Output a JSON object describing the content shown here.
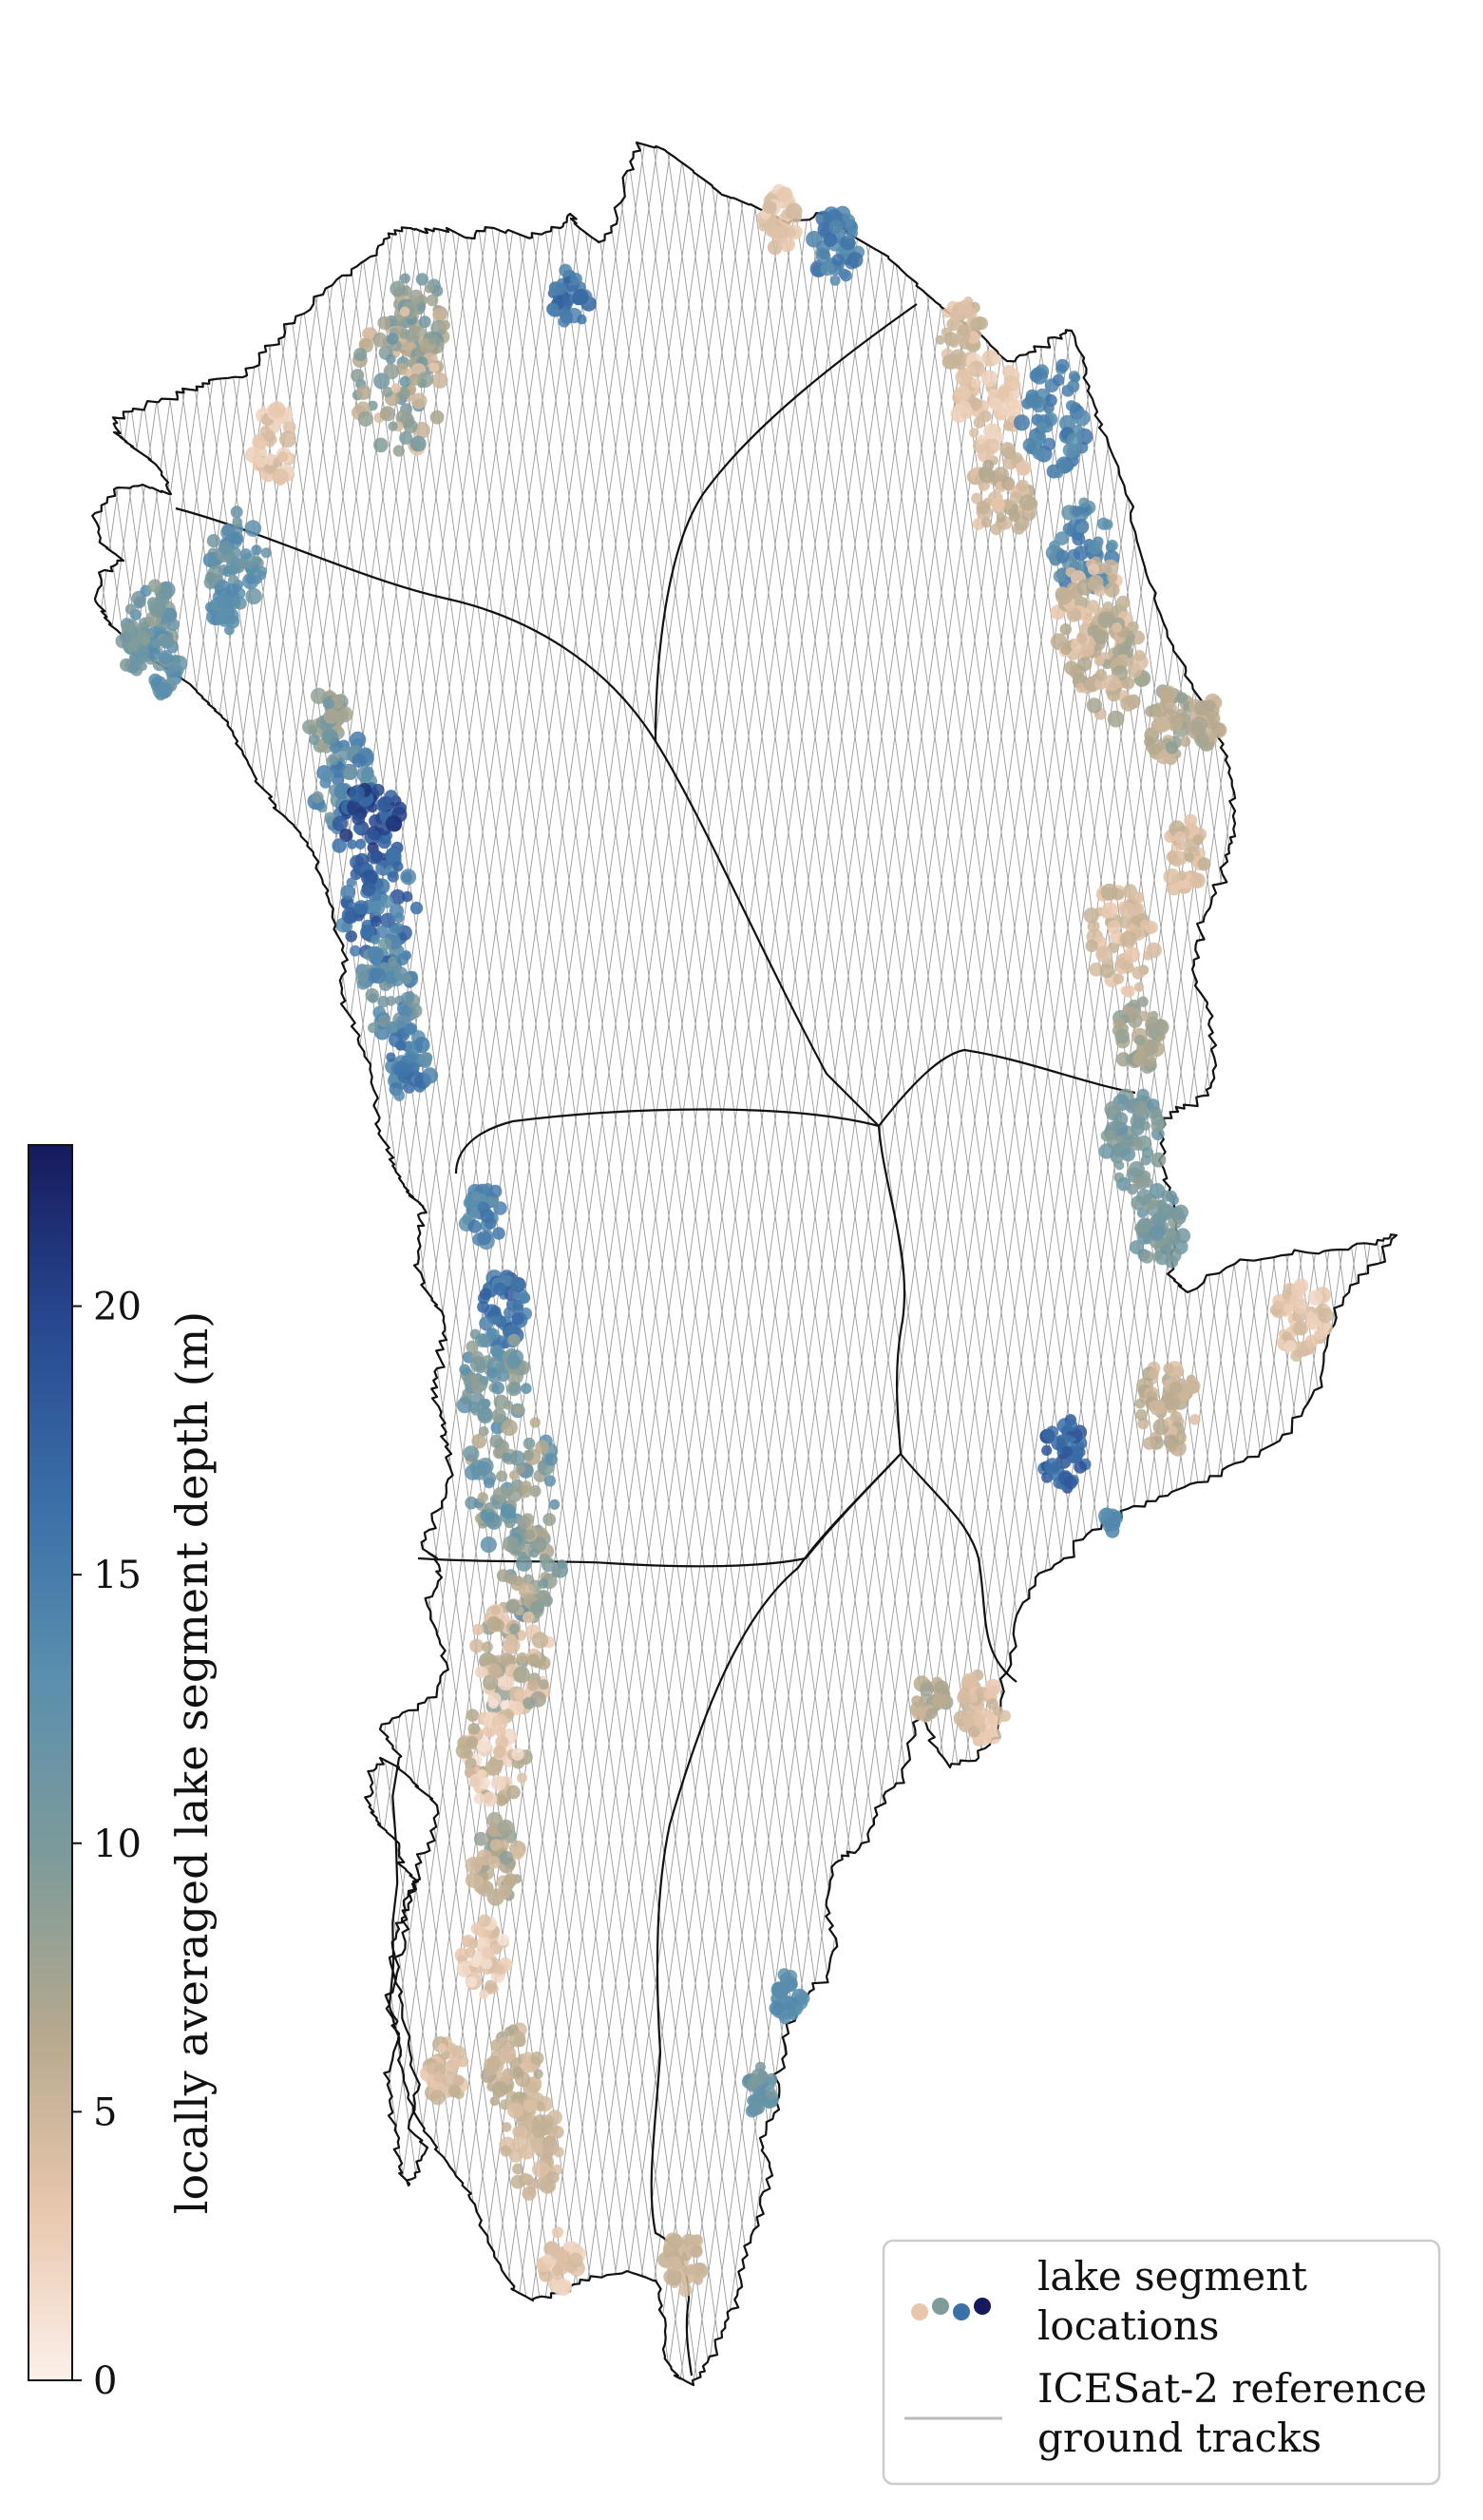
{
  "colorbar": {
    "label": "locally averaged lake segment depth (m)",
    "min": 0,
    "max": 23,
    "ticks": [
      0,
      5,
      10,
      15,
      20
    ],
    "tick_labels": [
      "0",
      "5",
      "10",
      "15",
      "20"
    ],
    "colors": [
      "#fcf0ea",
      "#e8c7ad",
      "#b6a98e",
      "#7f9b9a",
      "#5a8fae",
      "#3b6fa8",
      "#27478f",
      "#161a5c"
    ]
  },
  "legend": {
    "items": [
      {
        "label_line1": "lake segment",
        "label_line2": "locations",
        "marker": "colored-dots",
        "dot_colors": [
          "#e8c7ad",
          "#7f9b9a",
          "#3b6fa8",
          "#161a5c"
        ]
      },
      {
        "label_line1": "ICESat-2 reference",
        "label_line2": "ground tracks",
        "marker": "gray-line",
        "line_color": "#bbbbbb"
      }
    ]
  },
  "map": {
    "land_outline_color": "#111111",
    "track_color": "#9a9a9a",
    "basin_line_color": "#111111"
  }
}
